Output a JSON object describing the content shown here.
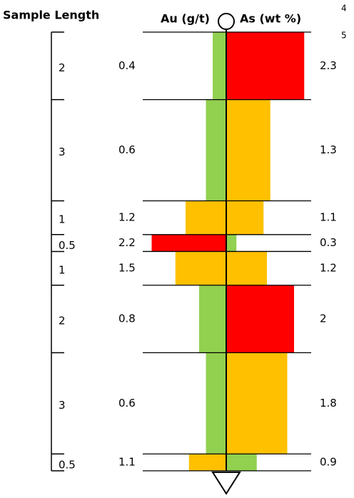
{
  "header": {
    "sample_length": "Sample Length",
    "au": "Au (g/t)",
    "as": "As (wt %)",
    "corner_labels": [
      "4",
      "5"
    ]
  },
  "intervals": [
    {
      "length": 2,
      "au": 0.4,
      "as": 2.3,
      "au_color": "#92d050",
      "as_color": "#ff0000"
    },
    {
      "length": 3,
      "au": 0.6,
      "as": 1.3,
      "au_color": "#92d050",
      "as_color": "#ffc000"
    },
    {
      "length": 1,
      "au": 1.2,
      "as": 1.1,
      "au_color": "#ffc000",
      "as_color": "#ffc000"
    },
    {
      "length": 0.5,
      "au": 2.2,
      "as": 0.3,
      "au_color": "#ff0000",
      "as_color": "#92d050"
    },
    {
      "length": 1,
      "au": 1.5,
      "as": 1.2,
      "au_color": "#ffc000",
      "as_color": "#ffc000"
    },
    {
      "length": 2,
      "au": 0.8,
      "as": 2.0,
      "au_color": "#92d050",
      "as_color": "#ff0000"
    },
    {
      "length": 3,
      "au": 0.6,
      "as": 1.8,
      "au_color": "#92d050",
      "as_color": "#ffc000"
    },
    {
      "length": 0.5,
      "au": 1.1,
      "as": 0.9,
      "au_color": "#ffc000",
      "as_color": "#92d050"
    }
  ]
}
